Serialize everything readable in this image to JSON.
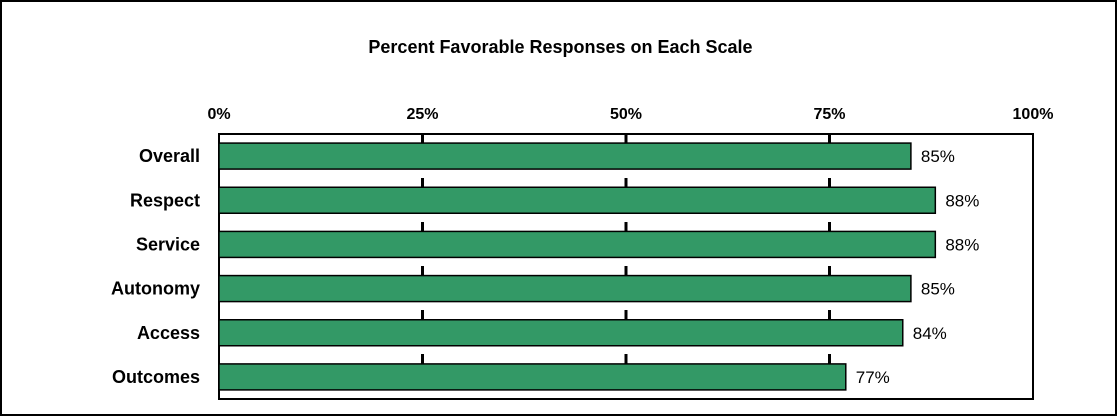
{
  "chart_data": {
    "type": "bar",
    "orientation": "horizontal",
    "title": "Percent Favorable Responses on Each Scale",
    "xlabel": "",
    "ylabel": "",
    "categories": [
      "Overall",
      "Respect",
      "Service",
      "Autonomy",
      "Access",
      "Outcomes"
    ],
    "values": [
      85,
      88,
      88,
      85,
      84,
      77
    ],
    "data_labels": [
      "85%",
      "88%",
      "88%",
      "85%",
      "84%",
      "77%"
    ],
    "xlim": [
      0,
      100
    ],
    "x_ticks": [
      0,
      25,
      50,
      75,
      100
    ],
    "x_tick_labels": [
      "0%",
      "25%",
      "50%",
      "75%",
      "100%"
    ],
    "x_axis_position": "top",
    "grid": "vertical dashed",
    "legend": "none",
    "colors": {
      "bar_fill": "#339966",
      "bar_stroke": "#000000",
      "gridline": "#000000",
      "text": "#000000",
      "background": "#ffffff"
    }
  }
}
